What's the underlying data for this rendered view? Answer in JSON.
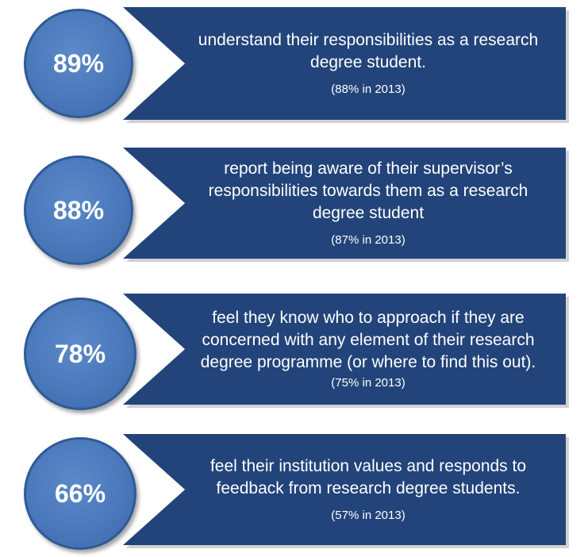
{
  "colors": {
    "banner": "#22447a",
    "circle": "#4a79bb",
    "circle_border": "#2f5a96",
    "text": "#ffffff"
  },
  "stats": [
    {
      "percent": "89%",
      "statement": "understand their responsibilities as a research degree student.",
      "comparison": "(88% in 2013)"
    },
    {
      "percent": "88%",
      "statement": "report being aware of their supervisor’s responsibilities towards them as a research degree student",
      "comparison": "(87% in 2013)"
    },
    {
      "percent": "78%",
      "statement": "feel they know who to approach if they are concerned with any element of their research degree programme (or where to find this out).",
      "comparison": "(75% in 2013)"
    },
    {
      "percent": "66%",
      "statement": "feel their institution values and responds to feedback from research degree students.",
      "comparison": "(57% in 2013)"
    }
  ]
}
